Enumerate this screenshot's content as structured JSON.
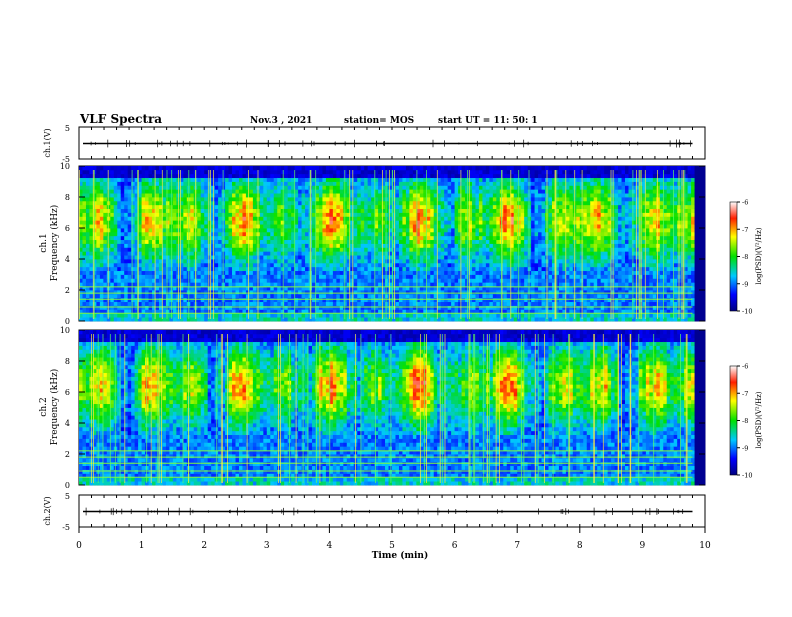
{
  "header": {
    "title": "VLF Spectra",
    "date": "Nov.3 , 2021",
    "station": "station= MOS",
    "start_ut": "start UT = 11: 50: 1"
  },
  "chart_data": [
    {
      "type": "line",
      "id": "waveform-ch1",
      "ylabel": "ch.1(V)",
      "ylim": [
        -5,
        5
      ],
      "yticks": [
        "5",
        "-5"
      ],
      "x": [
        0,
        10
      ],
      "values": [
        0,
        0
      ]
    },
    {
      "type": "heatmap",
      "id": "spectrogram-ch1",
      "ylabel": "ch.1\nFrequency (kHz)",
      "ylabel_lines": [
        "ch.1",
        "Frequency (kHz)"
      ],
      "ylim": [
        0,
        10
      ],
      "yticks": [
        "0",
        "2",
        "4",
        "6",
        "8",
        "10"
      ],
      "band_center_khz": 6.5,
      "colorbar": {
        "label": "log(PSD)(V²/Hz)",
        "range": [
          -10,
          -6
        ],
        "ticks": [
          "-6",
          "-7",
          "-8",
          "-9",
          "-10"
        ]
      }
    },
    {
      "type": "heatmap",
      "id": "spectrogram-ch2",
      "ylabel": "ch.2\nFrequency (kHz)",
      "ylabel_lines": [
        "ch.2",
        "Frequency (kHz)"
      ],
      "ylim": [
        0,
        10
      ],
      "yticks": [
        "0",
        "2",
        "4",
        "6",
        "8",
        "10"
      ],
      "band_center_khz": 6.4,
      "colorbar": {
        "label": "log(PSD)(V²/Hz)",
        "range": [
          -10,
          -6
        ],
        "ticks": [
          "-6",
          "-7",
          "-8",
          "-9",
          "-10"
        ]
      }
    },
    {
      "type": "line",
      "id": "waveform-ch2",
      "ylabel": "ch.2(V)",
      "ylim": [
        -5,
        5
      ],
      "yticks": [
        "5",
        "-5"
      ],
      "x": [
        0,
        10
      ],
      "values": [
        0,
        0
      ]
    }
  ],
  "x_axis": {
    "label": "Time (min)",
    "range": [
      0,
      10
    ],
    "ticks": [
      "0",
      "1",
      "2",
      "3",
      "4",
      "5",
      "6",
      "7",
      "8",
      "9",
      "10"
    ]
  }
}
